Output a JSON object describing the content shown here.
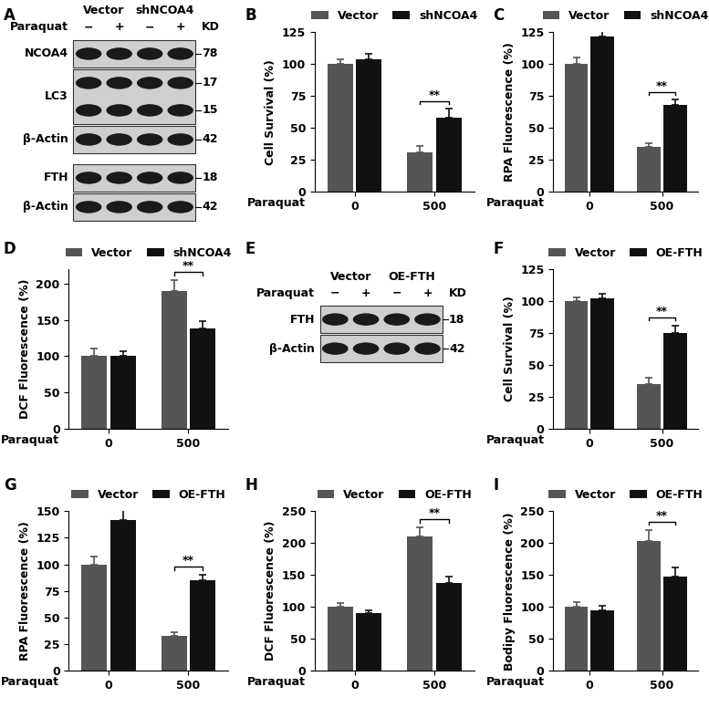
{
  "blots": [
    {
      "panel": "A",
      "groups": [
        {
          "name": "Vector",
          "lanes": 2
        },
        {
          "name": "shNCOA4",
          "lanes": 2
        }
      ],
      "treatment": {
        "label": "Paraquat",
        "signs": [
          "−",
          "+",
          "−",
          "+"
        ]
      },
      "marker_unit": "KD",
      "blocks": [
        [
          {
            "protein": "NCOA4",
            "kd": [
              78
            ]
          },
          {
            "protein": "LC3",
            "kd": [
              17,
              15
            ]
          },
          {
            "protein": "β-Actin",
            "kd": [
              42
            ]
          }
        ],
        [
          {
            "protein": "FTH",
            "kd": [
              18
            ]
          },
          {
            "protein": "β-Actin",
            "kd": [
              42
            ]
          }
        ]
      ]
    },
    {
      "panel": "E",
      "groups": [
        {
          "name": "Vector",
          "lanes": 2
        },
        {
          "name": "OE-FTH",
          "lanes": 2
        }
      ],
      "treatment": {
        "label": "Paraquat",
        "signs": [
          "−",
          "+",
          "−",
          "+"
        ]
      },
      "marker_unit": "KD",
      "blocks": [
        [
          {
            "protein": "FTH",
            "kd": [
              18
            ]
          },
          {
            "protein": "β-Actin",
            "kd": [
              42
            ]
          }
        ]
      ]
    }
  ],
  "chart_data": [
    {
      "panel": "B",
      "type": "bar",
      "ylabel": "Cell Survival (%)",
      "xlabel": "Paraquat",
      "categories": [
        "0",
        "500"
      ],
      "legend": "top",
      "series": [
        {
          "name": "Vector",
          "color": "#555555",
          "values": [
            100,
            31
          ],
          "errors": [
            4,
            5
          ]
        },
        {
          "name": "shNCOA4",
          "color": "#111111",
          "values": [
            104,
            58
          ],
          "errors": [
            4,
            7
          ]
        }
      ],
      "ylim": [
        0,
        125
      ],
      "yticks": [
        0,
        25,
        50,
        75,
        100,
        125
      ],
      "annotations": [
        {
          "text": "**",
          "category": "500"
        }
      ]
    },
    {
      "panel": "C",
      "type": "bar",
      "ylabel": "RPA Fluorescence (%)",
      "xlabel": "Paraquat",
      "categories": [
        "0",
        "500"
      ],
      "legend": "top",
      "series": [
        {
          "name": "Vector",
          "color": "#555555",
          "values": [
            100,
            35
          ],
          "errors": [
            5,
            3
          ]
        },
        {
          "name": "shNCOA4",
          "color": "#111111",
          "values": [
            122,
            68
          ],
          "errors": [
            7,
            4
          ]
        }
      ],
      "ylim": [
        0,
        125
      ],
      "yticks": [
        0,
        25,
        50,
        75,
        100,
        125
      ],
      "annotations": [
        {
          "text": "**",
          "category": "500"
        }
      ]
    },
    {
      "panel": "D",
      "type": "bar",
      "ylabel": "DCF Fluorescence (%)",
      "xlabel": "Paraquat",
      "categories": [
        "0",
        "500"
      ],
      "legend": "top",
      "series": [
        {
          "name": "Vector",
          "color": "#555555",
          "values": [
            100,
            190
          ],
          "errors": [
            10,
            15
          ]
        },
        {
          "name": "shNCOA4",
          "color": "#111111",
          "values": [
            100,
            138
          ],
          "errors": [
            7,
            10
          ]
        }
      ],
      "ylim": [
        0,
        220
      ],
      "yticks": [
        0,
        50,
        100,
        150,
        200
      ],
      "annotations": [
        {
          "text": "**",
          "category": "500"
        }
      ]
    },
    {
      "panel": "F",
      "type": "bar",
      "ylabel": "Cell Survival (%)",
      "xlabel": "Paraquat",
      "categories": [
        "0",
        "500"
      ],
      "legend": "top",
      "series": [
        {
          "name": "Vector",
          "color": "#555555",
          "values": [
            100,
            35
          ],
          "errors": [
            3,
            5
          ]
        },
        {
          "name": "OE-FTH",
          "color": "#111111",
          "values": [
            102,
            75
          ],
          "errors": [
            4,
            6
          ]
        }
      ],
      "ylim": [
        0,
        125
      ],
      "yticks": [
        0,
        25,
        50,
        75,
        100,
        125
      ],
      "annotations": [
        {
          "text": "**",
          "category": "500"
        }
      ]
    },
    {
      "panel": "G",
      "type": "bar",
      "ylabel": "RPA Fluorescence (%)",
      "xlabel": "Paraquat",
      "categories": [
        "0",
        "500"
      ],
      "legend": "top",
      "series": [
        {
          "name": "Vector",
          "color": "#555555",
          "values": [
            100,
            33
          ],
          "errors": [
            7,
            3
          ]
        },
        {
          "name": "OE-FTH",
          "color": "#111111",
          "values": [
            142,
            85
          ],
          "errors": [
            9,
            5
          ]
        }
      ],
      "ylim": [
        0,
        150
      ],
      "yticks": [
        0,
        25,
        50,
        75,
        100,
        125,
        150
      ],
      "annotations": [
        {
          "text": "**",
          "category": "500"
        }
      ]
    },
    {
      "panel": "H",
      "type": "bar",
      "ylabel": "DCF Fluorescence (%)",
      "xlabel": "Paraquat",
      "categories": [
        "0",
        "500"
      ],
      "legend": "top",
      "series": [
        {
          "name": "Vector",
          "color": "#555555",
          "values": [
            100,
            211
          ],
          "errors": [
            6,
            14
          ]
        },
        {
          "name": "OE-FTH",
          "color": "#111111",
          "values": [
            90,
            138
          ],
          "errors": [
            5,
            10
          ]
        }
      ],
      "ylim": [
        0,
        250
      ],
      "yticks": [
        0,
        50,
        100,
        150,
        200,
        250
      ],
      "annotations": [
        {
          "text": "**",
          "category": "500"
        }
      ]
    },
    {
      "panel": "I",
      "type": "bar",
      "ylabel": "Bodipy Fluorescence (%)",
      "xlabel": "Paraquat",
      "categories": [
        "0",
        "500"
      ],
      "legend": "top",
      "series": [
        {
          "name": "Vector",
          "color": "#555555",
          "values": [
            100,
            203
          ],
          "errors": [
            8,
            18
          ]
        },
        {
          "name": "OE-FTH",
          "color": "#111111",
          "values": [
            95,
            148
          ],
          "errors": [
            6,
            14
          ]
        }
      ],
      "ylim": [
        0,
        250
      ],
      "yticks": [
        0,
        50,
        100,
        150,
        200,
        250
      ],
      "annotations": [
        {
          "text": "**",
          "category": "500"
        }
      ]
    }
  ]
}
